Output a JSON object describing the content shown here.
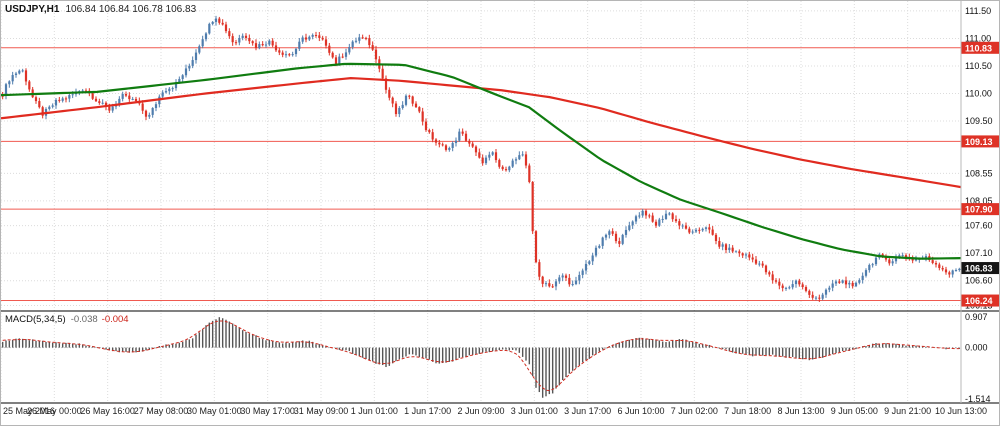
{
  "header": {
    "symbol_timeframe": "USDJPY,H1",
    "ohlc": "106.84 106.84 106.78 106.83"
  },
  "indicator": {
    "label": "MACD(5,34,5)",
    "value_main": "-0.038",
    "value_signal": "-0.004"
  },
  "colors": {
    "background": "#ffffff",
    "grid": "#dcdcdc",
    "bull": "#4f7dad",
    "bear": "#de3226",
    "ma_fast_green": "#107c10",
    "ma_slow_red": "#e02b20",
    "hline": "#f05a50",
    "hline_label_bg": "#de3226",
    "price_label_bg": "#151515",
    "label_text": "#ffffff",
    "axis_text": "#111111",
    "macd_bar": "#555555",
    "macd_signal": "#d02c20",
    "panel_border": "#000000"
  },
  "chart_data": {
    "type": "candlestick",
    "title": "USDJPY,H1",
    "symbol": "USDJPY",
    "timeframe": "H1",
    "quote_line": [
      "106.84",
      "106.84",
      "106.78",
      "106.83"
    ],
    "current_price": 106.83,
    "ylim": [
      106.05,
      111.68
    ],
    "y_ticks": [
      111.5,
      111.0,
      110.5,
      110.0,
      109.5,
      108.55,
      108.05,
      107.6,
      107.1,
      106.6,
      106.15
    ],
    "hlines": [
      110.83,
      109.13,
      107.9,
      106.24
    ],
    "x_ticks": [
      "25 May 2016",
      "26 May 00:00",
      "26 May 16:00",
      "27 May 08:00",
      "30 May 01:00",
      "30 May 17:00",
      "31 May 09:00",
      "1 Jun 01:00",
      "1 Jun 17:00",
      "2 Jun 09:00",
      "3 Jun 01:00",
      "3 Jun 17:00",
      "6 Jun 10:00",
      "7 Jun 02:00",
      "7 Jun 18:00",
      "8 Jun 13:00",
      "9 Jun 05:00",
      "9 Jun 21:00",
      "10 Jun 13:00"
    ],
    "price_path": [
      [
        0.0,
        110.0
      ],
      [
        0.008,
        110.3
      ],
      [
        0.02,
        110.45
      ],
      [
        0.032,
        109.9
      ],
      [
        0.042,
        109.62
      ],
      [
        0.056,
        109.85
      ],
      [
        0.07,
        109.95
      ],
      [
        0.085,
        110.1
      ],
      [
        0.1,
        109.85
      ],
      [
        0.111,
        109.7
      ],
      [
        0.125,
        109.95
      ],
      [
        0.14,
        109.85
      ],
      [
        0.152,
        109.55
      ],
      [
        0.167,
        110.05
      ],
      [
        0.18,
        110.15
      ],
      [
        0.195,
        110.5
      ],
      [
        0.21,
        111.05
      ],
      [
        0.222,
        111.42
      ],
      [
        0.232,
        111.2
      ],
      [
        0.242,
        110.9
      ],
      [
        0.252,
        111.1
      ],
      [
        0.264,
        110.85
      ],
      [
        0.278,
        110.95
      ],
      [
        0.29,
        110.75
      ],
      [
        0.302,
        110.7
      ],
      [
        0.314,
        111.0
      ],
      [
        0.326,
        111.05
      ],
      [
        0.338,
        110.9
      ],
      [
        0.348,
        110.55
      ],
      [
        0.36,
        110.8
      ],
      [
        0.372,
        111.02
      ],
      [
        0.382,
        110.95
      ],
      [
        0.392,
        110.6
      ],
      [
        0.4,
        110.1
      ],
      [
        0.412,
        109.6
      ],
      [
        0.422,
        109.95
      ],
      [
        0.432,
        109.8
      ],
      [
        0.444,
        109.3
      ],
      [
        0.456,
        109.05
      ],
      [
        0.468,
        109.0
      ],
      [
        0.478,
        109.3
      ],
      [
        0.49,
        109.05
      ],
      [
        0.5,
        108.75
      ],
      [
        0.512,
        108.9
      ],
      [
        0.522,
        108.58
      ],
      [
        0.532,
        108.75
      ],
      [
        0.543,
        108.88
      ],
      [
        0.55,
        108.55
      ],
      [
        0.556,
        107.0
      ],
      [
        0.562,
        106.6
      ],
      [
        0.575,
        106.5
      ],
      [
        0.585,
        106.7
      ],
      [
        0.597,
        106.5
      ],
      [
        0.61,
        106.9
      ],
      [
        0.622,
        107.2
      ],
      [
        0.633,
        107.5
      ],
      [
        0.645,
        107.3
      ],
      [
        0.658,
        107.7
      ],
      [
        0.67,
        107.88
      ],
      [
        0.682,
        107.6
      ],
      [
        0.695,
        107.85
      ],
      [
        0.708,
        107.6
      ],
      [
        0.722,
        107.45
      ],
      [
        0.735,
        107.6
      ],
      [
        0.748,
        107.25
      ],
      [
        0.762,
        107.15
      ],
      [
        0.778,
        107.05
      ],
      [
        0.792,
        106.9
      ],
      [
        0.805,
        106.6
      ],
      [
        0.818,
        106.45
      ],
      [
        0.83,
        106.6
      ],
      [
        0.842,
        106.35
      ],
      [
        0.855,
        106.28
      ],
      [
        0.868,
        106.55
      ],
      [
        0.88,
        106.6
      ],
      [
        0.889,
        106.45
      ],
      [
        0.902,
        106.8
      ],
      [
        0.915,
        107.05
      ],
      [
        0.928,
        106.95
      ],
      [
        0.94,
        107.08
      ],
      [
        0.952,
        106.98
      ],
      [
        0.965,
        107.02
      ],
      [
        0.978,
        106.88
      ],
      [
        0.99,
        106.72
      ],
      [
        1.0,
        106.83
      ]
    ],
    "ma_fast": [
      [
        0.0,
        109.97
      ],
      [
        0.1,
        110.03
      ],
      [
        0.21,
        110.24
      ],
      [
        0.31,
        110.46
      ],
      [
        0.36,
        110.54
      ],
      [
        0.42,
        110.52
      ],
      [
        0.47,
        110.3
      ],
      [
        0.52,
        109.95
      ],
      [
        0.55,
        109.75
      ],
      [
        0.583,
        109.32
      ],
      [
        0.625,
        108.8
      ],
      [
        0.667,
        108.39
      ],
      [
        0.708,
        108.07
      ],
      [
        0.75,
        107.83
      ],
      [
        0.792,
        107.58
      ],
      [
        0.833,
        107.36
      ],
      [
        0.875,
        107.17
      ],
      [
        0.917,
        107.04
      ],
      [
        0.958,
        107.0
      ],
      [
        1.0,
        107.01
      ]
    ],
    "ma_slow": [
      [
        0.0,
        109.55
      ],
      [
        0.104,
        109.76
      ],
      [
        0.208,
        109.99
      ],
      [
        0.313,
        110.19
      ],
      [
        0.365,
        110.28
      ],
      [
        0.417,
        110.23
      ],
      [
        0.521,
        110.06
      ],
      [
        0.573,
        109.93
      ],
      [
        0.625,
        109.73
      ],
      [
        0.677,
        109.47
      ],
      [
        0.729,
        109.23
      ],
      [
        0.781,
        109.0
      ],
      [
        0.833,
        108.8
      ],
      [
        0.885,
        108.63
      ],
      [
        0.938,
        108.48
      ],
      [
        1.0,
        108.3
      ]
    ],
    "macd": {
      "name": "MACD",
      "params": "5,34,5",
      "value_main": -0.038,
      "value_signal": -0.004,
      "ylim": [
        -1.6,
        1.0
      ],
      "y_ticks": [
        0.907,
        0.0,
        -1.514
      ],
      "path": [
        [
          0.0,
          0.18
        ],
        [
          0.02,
          0.26
        ],
        [
          0.04,
          0.2
        ],
        [
          0.06,
          0.12
        ],
        [
          0.08,
          0.1
        ],
        [
          0.1,
          0.02
        ],
        [
          0.115,
          -0.1
        ],
        [
          0.135,
          -0.16
        ],
        [
          0.155,
          -0.06
        ],
        [
          0.17,
          0.08
        ],
        [
          0.185,
          0.12
        ],
        [
          0.2,
          0.3
        ],
        [
          0.215,
          0.7
        ],
        [
          0.2275,
          0.88
        ],
        [
          0.24,
          0.68
        ],
        [
          0.255,
          0.45
        ],
        [
          0.27,
          0.28
        ],
        [
          0.285,
          0.15
        ],
        [
          0.3,
          0.12
        ],
        [
          0.315,
          0.22
        ],
        [
          0.33,
          0.1
        ],
        [
          0.345,
          -0.02
        ],
        [
          0.36,
          -0.08
        ],
        [
          0.375,
          -0.28
        ],
        [
          0.39,
          -0.45
        ],
        [
          0.402,
          -0.55
        ],
        [
          0.415,
          -0.35
        ],
        [
          0.428,
          -0.18
        ],
        [
          0.44,
          -0.3
        ],
        [
          0.455,
          -0.45
        ],
        [
          0.468,
          -0.42
        ],
        [
          0.48,
          -0.28
        ],
        [
          0.495,
          -0.2
        ],
        [
          0.51,
          -0.1
        ],
        [
          0.525,
          -0.05
        ],
        [
          0.538,
          -0.1
        ],
        [
          0.55,
          -0.45
        ],
        [
          0.558,
          -1.2
        ],
        [
          0.565,
          -1.45
        ],
        [
          0.575,
          -1.3
        ],
        [
          0.59,
          -0.8
        ],
        [
          0.605,
          -0.45
        ],
        [
          0.62,
          -0.18
        ],
        [
          0.635,
          0.05
        ],
        [
          0.65,
          0.18
        ],
        [
          0.665,
          0.28
        ],
        [
          0.68,
          0.22
        ],
        [
          0.695,
          0.18
        ],
        [
          0.71,
          0.25
        ],
        [
          0.725,
          0.15
        ],
        [
          0.74,
          0.05
        ],
        [
          0.755,
          -0.05
        ],
        [
          0.77,
          -0.18
        ],
        [
          0.785,
          -0.25
        ],
        [
          0.8,
          -0.2
        ],
        [
          0.815,
          -0.28
        ],
        [
          0.83,
          -0.3
        ],
        [
          0.845,
          -0.35
        ],
        [
          0.86,
          -0.25
        ],
        [
          0.875,
          -0.12
        ],
        [
          0.89,
          -0.05
        ],
        [
          0.905,
          0.08
        ],
        [
          0.92,
          0.14
        ],
        [
          0.935,
          0.1
        ],
        [
          0.95,
          0.05
        ],
        [
          0.965,
          0.02
        ],
        [
          0.98,
          -0.02
        ],
        [
          1.0,
          -0.04
        ]
      ]
    }
  }
}
